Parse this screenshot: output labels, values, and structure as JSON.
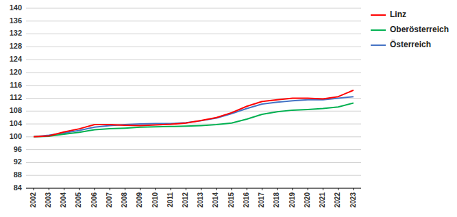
{
  "chart_data": {
    "type": "line",
    "x": [
      2002,
      2003,
      2004,
      2005,
      2006,
      2007,
      2008,
      2009,
      2010,
      2011,
      2012,
      2013,
      2014,
      2015,
      2016,
      2017,
      2018,
      2019,
      2020,
      2021,
      2022,
      2023
    ],
    "series": [
      {
        "name": "Linz",
        "color": "#ff0000",
        "values": [
          100.0,
          100.3,
          101.5,
          102.5,
          103.8,
          103.8,
          103.6,
          103.5,
          103.7,
          103.9,
          104.3,
          105.1,
          106.0,
          107.5,
          109.5,
          111.0,
          111.5,
          112.0,
          112.0,
          111.8,
          112.5,
          114.5
        ]
      },
      {
        "name": "Oberösterreich",
        "color": "#00b050",
        "values": [
          100.0,
          100.2,
          100.8,
          101.4,
          102.2,
          102.5,
          102.7,
          103.0,
          103.1,
          103.2,
          103.3,
          103.5,
          103.8,
          104.3,
          105.5,
          107.0,
          107.8,
          108.3,
          108.5,
          108.8,
          109.3,
          110.5
        ]
      },
      {
        "name": "Österreich",
        "color": "#4472c4",
        "values": [
          100.0,
          100.5,
          101.2,
          102.0,
          103.0,
          103.5,
          103.8,
          104.0,
          104.1,
          104.1,
          104.4,
          105.0,
          105.8,
          107.2,
          108.8,
          110.2,
          110.8,
          111.2,
          111.5,
          111.5,
          112.0,
          112.5
        ]
      }
    ],
    "xlim": [
      2001.5,
      2023.5
    ],
    "xticks": [
      2002,
      2003,
      2004,
      2005,
      2006,
      2007,
      2008,
      2009,
      2010,
      2011,
      2012,
      2013,
      2014,
      2015,
      2016,
      2017,
      2018,
      2019,
      2020,
      2021,
      2022,
      2023
    ],
    "ylim": [
      84,
      140
    ],
    "yticks": [
      84,
      88,
      92,
      96,
      100,
      104,
      108,
      112,
      116,
      120,
      124,
      128,
      132,
      136,
      140
    ],
    "grid": true,
    "legend": "right"
  }
}
